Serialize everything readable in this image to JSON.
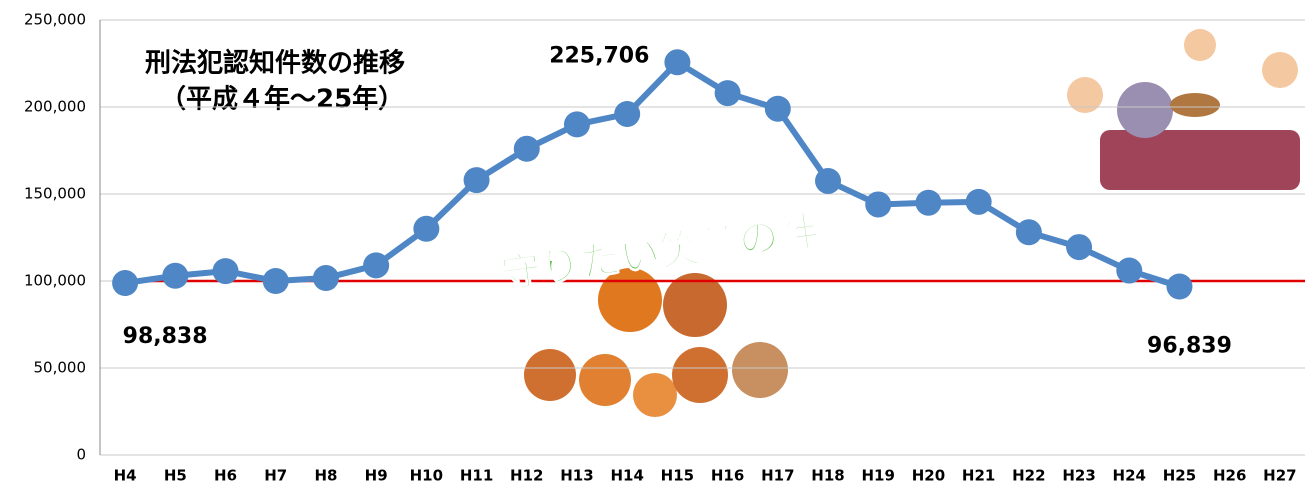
{
  "chart_data": {
    "type": "line",
    "title": "刑法犯認知件数の推移",
    "subtitle": "（平成４年～25年）",
    "annotation": "守りたい笑顔の絆",
    "categories": [
      "H4",
      "H5",
      "H6",
      "H7",
      "H8",
      "H9",
      "H10",
      "H11",
      "H12",
      "H13",
      "H14",
      "H15",
      "H16",
      "H17",
      "H18",
      "H19",
      "H20",
      "H21",
      "H22",
      "H23",
      "H24",
      "H25",
      "H26",
      "H27"
    ],
    "series": [
      {
        "color": "#4f86c6",
        "values": [
          98838,
          103000,
          105700,
          100000,
          101700,
          109000,
          130000,
          158000,
          176000,
          190000,
          196000,
          225706,
          208000,
          199000,
          157500,
          144000,
          145000,
          145500,
          128000,
          119500,
          106000,
          96839,
          null,
          null
        ],
        "value_labels": [
          "98,838",
          null,
          null,
          null,
          null,
          null,
          null,
          null,
          null,
          null,
          null,
          "225,706",
          null,
          null,
          null,
          null,
          null,
          null,
          null,
          null,
          null,
          "96,839",
          null,
          null
        ]
      }
    ],
    "reference_line": {
      "value": 100000,
      "color": "#e00000"
    },
    "ylim": [
      0,
      250000
    ],
    "yticks": [
      0,
      {
        "value": 50000,
        "label": "50,000"
      },
      {
        "value": 100000,
        "label": "100,000"
      },
      {
        "value": 150000,
        "label": "150,000"
      },
      {
        "value": 200000,
        "label": "200,000"
      },
      {
        "value": 250000,
        "label": "250,000"
      }
    ],
    "grid": true
  }
}
